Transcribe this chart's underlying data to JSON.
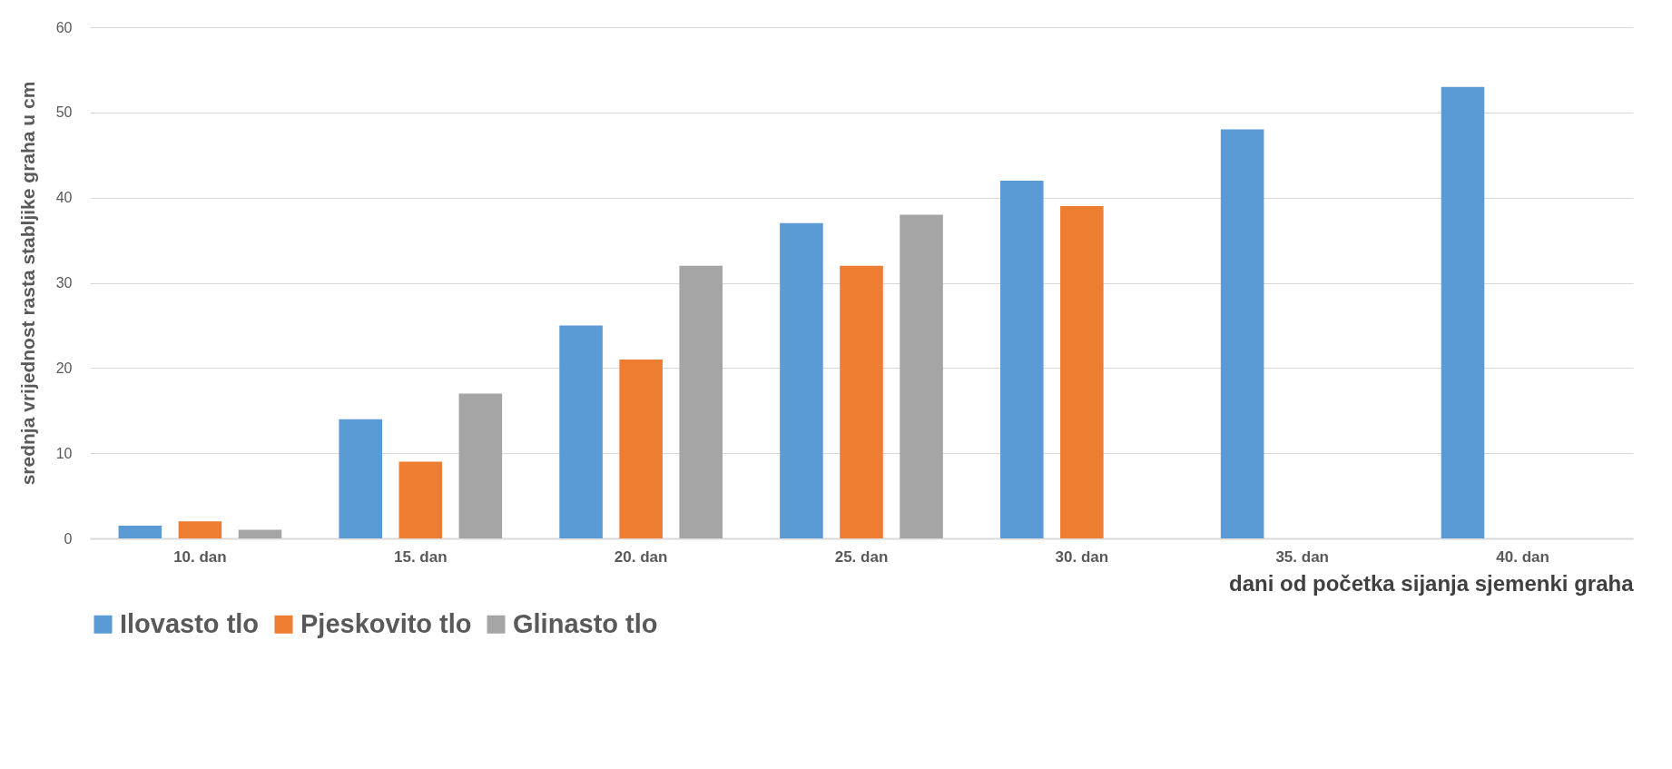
{
  "chart_data": {
    "type": "bar",
    "xlabel": "dani od početka sijanja sjemenki graha",
    "ylabel": "srednja vrijednost rasta stabljike graha u cm",
    "categories": [
      "10. dan",
      "15. dan",
      "20. dan",
      "25. dan",
      "30. dan",
      "35. dan",
      "40. dan"
    ],
    "series": [
      {
        "name": "Ilovasto tlo",
        "color": "#5b9bd5",
        "values": [
          1.5,
          14,
          25,
          37,
          42,
          48,
          53
        ]
      },
      {
        "name": "Pjeskovito tlo",
        "color": "#ed7d31",
        "values": [
          2,
          9,
          21,
          32,
          39,
          null,
          null
        ]
      },
      {
        "name": "Glinasto tlo",
        "color": "#a5a5a5",
        "values": [
          1,
          17,
          32,
          38,
          null,
          null,
          null
        ]
      }
    ],
    "ylim": [
      0,
      60
    ],
    "yticks": [
      0,
      10,
      20,
      30,
      40,
      50,
      60
    ],
    "grid": "y",
    "legend": "bottom"
  }
}
